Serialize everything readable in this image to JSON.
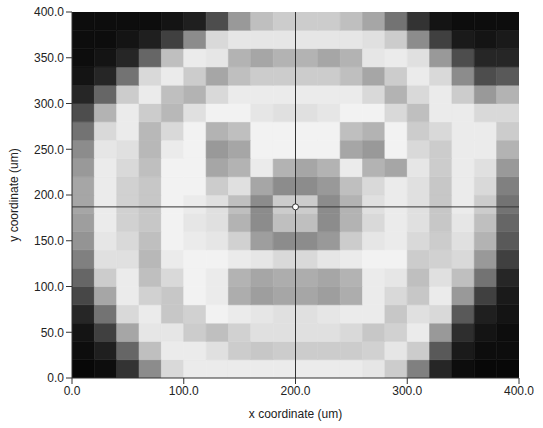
{
  "chart_data": {
    "type": "heatmap",
    "x_label": "x coordinate (um)",
    "y_label": "y coordinate (um)",
    "xlim": [
      0,
      400
    ],
    "ylim": [
      0,
      400
    ],
    "xticks": [
      {
        "value": 0,
        "label": "0.0"
      },
      {
        "value": 100,
        "label": "100.0"
      },
      {
        "value": 200,
        "label": "200.0"
      },
      {
        "value": 300,
        "label": "300.0"
      },
      {
        "value": 400,
        "label": "400.0"
      }
    ],
    "yticks": [
      {
        "value": 0,
        "label": "0.0"
      },
      {
        "value": 50,
        "label": "50.0"
      },
      {
        "value": 100,
        "label": "100.0"
      },
      {
        "value": 150,
        "label": "150.0"
      },
      {
        "value": 200,
        "label": "200.0"
      },
      {
        "value": 250,
        "label": "250.0"
      },
      {
        "value": 300,
        "label": "300.0"
      },
      {
        "value": 350,
        "label": "350.0"
      },
      {
        "value": 400,
        "label": "400.0"
      }
    ],
    "x_edges": [
      0,
      20,
      40,
      60,
      80,
      100,
      120,
      140,
      160,
      180,
      200,
      220,
      240,
      260,
      280,
      300,
      320,
      340,
      360,
      380,
      400
    ],
    "y_edges": [
      0,
      20,
      40,
      60,
      80,
      100,
      120,
      140,
      160,
      180,
      200,
      220,
      240,
      260,
      280,
      300,
      320,
      340,
      360,
      380,
      400
    ],
    "zlim": [
      0,
      100
    ],
    "cells": [
      [
        3,
        5,
        20,
        55,
        85,
        92,
        92,
        92,
        92,
        92,
        92,
        92,
        92,
        90,
        80,
        50,
        15,
        5,
        3,
        3
      ],
      [
        5,
        12,
        40,
        75,
        92,
        92,
        88,
        80,
        78,
        80,
        80,
        80,
        80,
        82,
        90,
        80,
        35,
        10,
        5,
        5
      ],
      [
        8,
        25,
        65,
        90,
        90,
        80,
        75,
        82,
        88,
        88,
        88,
        88,
        85,
        78,
        82,
        92,
        60,
        18,
        8,
        5
      ],
      [
        15,
        45,
        85,
        92,
        78,
        82,
        95,
        92,
        90,
        88,
        88,
        90,
        92,
        92,
        78,
        88,
        85,
        35,
        12,
        8
      ],
      [
        28,
        65,
        92,
        82,
        78,
        95,
        92,
        68,
        62,
        65,
        65,
        62,
        68,
        92,
        85,
        78,
        92,
        60,
        25,
        10
      ],
      [
        40,
        80,
        92,
        75,
        85,
        95,
        92,
        70,
        65,
        68,
        68,
        65,
        70,
        92,
        90,
        75,
        88,
        75,
        45,
        15
      ],
      [
        50,
        88,
        88,
        72,
        92,
        95,
        95,
        92,
        90,
        85,
        85,
        90,
        92,
        95,
        95,
        80,
        82,
        85,
        60,
        25
      ],
      [
        58,
        90,
        85,
        75,
        95,
        92,
        90,
        82,
        62,
        55,
        55,
        60,
        80,
        90,
        92,
        85,
        80,
        88,
        70,
        35
      ],
      [
        62,
        92,
        82,
        78,
        95,
        90,
        88,
        70,
        55,
        75,
        75,
        55,
        70,
        85,
        92,
        88,
        78,
        90,
        75,
        40
      ],
      [
        65,
        92,
        82,
        78,
        95,
        92,
        88,
        75,
        55,
        80,
        80,
        55,
        70,
        88,
        92,
        88,
        78,
        92,
        80,
        45
      ],
      [
        65,
        92,
        82,
        78,
        95,
        95,
        80,
        88,
        65,
        55,
        55,
        60,
        75,
        85,
        92,
        88,
        78,
        92,
        85,
        50
      ],
      [
        60,
        92,
        85,
        75,
        95,
        95,
        65,
        70,
        92,
        70,
        65,
        70,
        92,
        70,
        65,
        90,
        80,
        92,
        88,
        60
      ],
      [
        55,
        90,
        88,
        72,
        92,
        95,
        60,
        65,
        95,
        95,
        95,
        95,
        65,
        60,
        95,
        85,
        80,
        92,
        92,
        70
      ],
      [
        45,
        85,
        92,
        72,
        85,
        95,
        70,
        75,
        95,
        95,
        95,
        95,
        75,
        70,
        95,
        80,
        85,
        92,
        92,
        80
      ],
      [
        30,
        70,
        92,
        80,
        72,
        88,
        95,
        95,
        90,
        88,
        88,
        90,
        95,
        95,
        85,
        75,
        92,
        92,
        85,
        85
      ],
      [
        15,
        40,
        80,
        92,
        75,
        70,
        85,
        92,
        92,
        92,
        92,
        92,
        92,
        85,
        70,
        85,
        92,
        80,
        60,
        70
      ],
      [
        8,
        15,
        45,
        85,
        92,
        80,
        65,
        75,
        80,
        80,
        80,
        80,
        75,
        65,
        80,
        92,
        85,
        55,
        30,
        35
      ],
      [
        5,
        8,
        15,
        40,
        75,
        92,
        90,
        70,
        65,
        70,
        70,
        65,
        70,
        90,
        92,
        88,
        60,
        30,
        15,
        15
      ],
      [
        5,
        5,
        8,
        12,
        25,
        55,
        85,
        90,
        90,
        90,
        90,
        90,
        90,
        88,
        80,
        55,
        25,
        10,
        8,
        10
      ],
      [
        5,
        5,
        5,
        5,
        8,
        12,
        30,
        60,
        75,
        80,
        80,
        80,
        75,
        65,
        45,
        20,
        8,
        5,
        5,
        5
      ]
    ],
    "cursor": {
      "x": 200,
      "y": 187
    }
  }
}
